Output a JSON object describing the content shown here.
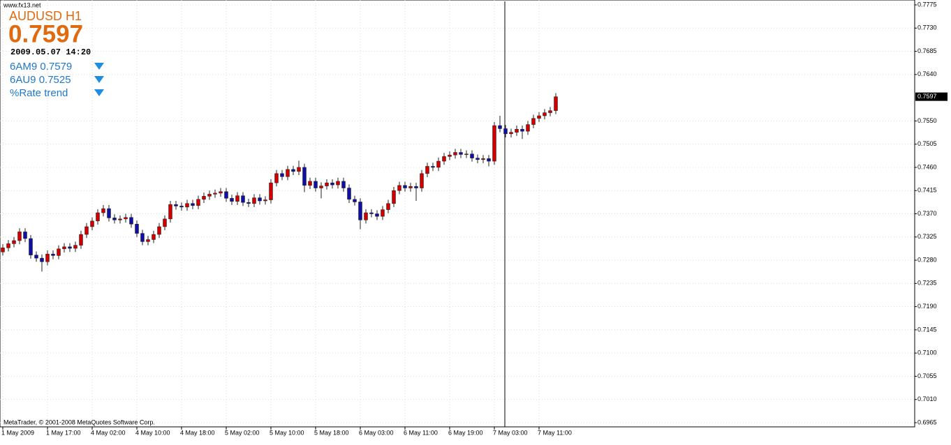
{
  "header": {
    "site": "www.fx13.net",
    "symbol": "AUDUSD  H1",
    "date": "2009.05.07 14:20",
    "items": [
      "6AM9 0.7579",
      "6AU9 0.7525",
      "%Rate trend"
    ]
  },
  "footer": "MetaTrader, © 2001-2008 MetaQuotes Software Corp.",
  "chart_data": {
    "type": "candlestick",
    "price": 0.7597,
    "up_color": "#cc0000",
    "down_color": "#1010a0",
    "grid": true,
    "ylim": [
      0.6965,
      0.7775
    ],
    "yticks": [
      0.7775,
      {
        "value": 0.773,
        "label": "0.7730"
      },
      0.7685,
      {
        "value": 0.764,
        "label": "0.7640"
      },
      {
        "value": 0.755,
        "label": "0.7550"
      },
      0.7505,
      {
        "value": 0.746,
        "label": "0.7460"
      },
      0.7415,
      {
        "value": 0.737,
        "label": "0.7370"
      },
      0.7325,
      {
        "value": 0.728,
        "label": "0.7280"
      },
      0.7235,
      {
        "value": 0.719,
        "label": "0.7190"
      },
      0.7145,
      {
        "value": 0.71,
        "label": "0.7100"
      },
      0.7055,
      {
        "value": 0.701,
        "label": "0.7010"
      },
      0.6965
    ],
    "categories": [
      "1 May 2009",
      null,
      null,
      null,
      null,
      null,
      null,
      null,
      "1 May 17:00",
      null,
      null,
      null,
      null,
      null,
      null,
      null,
      "4 May 02:00",
      null,
      null,
      null,
      null,
      null,
      null,
      null,
      "4 May 10:00",
      null,
      null,
      null,
      null,
      null,
      null,
      null,
      "4 May 18:00",
      null,
      null,
      null,
      null,
      null,
      null,
      null,
      "5 May 02:00",
      null,
      null,
      null,
      null,
      null,
      null,
      null,
      "5 May 10:00",
      null,
      null,
      null,
      null,
      null,
      null,
      null,
      "5 May 18:00",
      null,
      null,
      null,
      null,
      null,
      null,
      null,
      "6 May 03:00",
      null,
      null,
      null,
      null,
      null,
      null,
      null,
      "6 May 11:00",
      null,
      null,
      null,
      null,
      null,
      null,
      null,
      "6 May 19:00",
      null,
      null,
      null,
      null,
      null,
      null,
      null,
      "7 May 03:00",
      null,
      null,
      null,
      null,
      null,
      null,
      null,
      "7 May 11:00",
      null,
      null,
      null
    ],
    "open": [
      0.7296,
      0.7304,
      0.7312,
      0.7318,
      0.7335,
      0.7322,
      0.729,
      0.7284,
      0.7277,
      0.7292,
      0.7289,
      0.7302,
      0.7306,
      0.7303,
      0.7309,
      0.733,
      0.7345,
      0.7356,
      0.7372,
      0.738,
      0.7362,
      0.7358,
      0.736,
      0.7363,
      0.735,
      0.7332,
      0.7316,
      0.732,
      0.733,
      0.7345,
      0.736,
      0.7388,
      0.7385,
      0.7383,
      0.739,
      0.7386,
      0.7398,
      0.7404,
      0.7408,
      0.741,
      0.7413,
      0.74,
      0.7394,
      0.7405,
      0.7392,
      0.739,
      0.7401,
      0.7395,
      0.7397,
      0.743,
      0.7448,
      0.7442,
      0.7456,
      0.7452,
      0.746,
      0.7425,
      0.7433,
      0.742,
      0.7424,
      0.743,
      0.7426,
      0.7433,
      0.742,
      0.7398,
      0.7393,
      0.7358,
      0.7372,
      0.737,
      0.7365,
      0.7378,
      0.739,
      0.7415,
      0.7425,
      0.742,
      0.7423,
      0.742,
      0.7448,
      0.7462,
      0.746,
      0.7472,
      0.7481,
      0.7484,
      0.7489,
      0.7485,
      0.7486,
      0.7478,
      0.7475,
      0.7477,
      0.7472,
      0.7541,
      0.7535,
      0.7525,
      0.7528,
      0.7534,
      0.753,
      0.7543,
      0.7555,
      0.756,
      0.7566,
      0.757
    ],
    "high": [
      0.7311,
      0.7319,
      0.7325,
      0.7342,
      0.7342,
      0.7329,
      0.7297,
      0.7291,
      0.7299,
      0.7299,
      0.7309,
      0.7313,
      0.7313,
      0.7316,
      0.7337,
      0.7352,
      0.7363,
      0.7379,
      0.7387,
      0.7387,
      0.7369,
      0.7367,
      0.737,
      0.737,
      0.7357,
      0.7339,
      0.7327,
      0.7337,
      0.7352,
      0.7367,
      0.7395,
      0.7395,
      0.7392,
      0.7397,
      0.7397,
      0.7405,
      0.7411,
      0.7415,
      0.7417,
      0.742,
      0.742,
      0.7407,
      0.7412,
      0.7412,
      0.7399,
      0.7408,
      0.7408,
      0.7404,
      0.7437,
      0.7455,
      0.7455,
      0.7463,
      0.7463,
      0.7473,
      0.7467,
      0.744,
      0.744,
      0.7431,
      0.7437,
      0.7437,
      0.744,
      0.744,
      0.7427,
      0.7405,
      0.74,
      0.7379,
      0.7379,
      0.7377,
      0.7385,
      0.7397,
      0.7422,
      0.7432,
      0.7432,
      0.743,
      0.743,
      0.7455,
      0.7469,
      0.7469,
      0.7479,
      0.7488,
      0.7491,
      0.7496,
      0.7496,
      0.7493,
      0.7493,
      0.7485,
      0.7484,
      0.7484,
      0.7548,
      0.756,
      0.7542,
      0.7535,
      0.7541,
      0.7541,
      0.755,
      0.7562,
      0.7567,
      0.7573,
      0.7577,
      0.7604
    ],
    "low": [
      0.7289,
      0.7297,
      0.7305,
      0.7311,
      0.7315,
      0.7283,
      0.7277,
      0.7258,
      0.727,
      0.7282,
      0.7282,
      0.7295,
      0.7296,
      0.7296,
      0.7302,
      0.7323,
      0.7338,
      0.7349,
      0.7365,
      0.7355,
      0.7351,
      0.7351,
      0.7353,
      0.7343,
      0.7325,
      0.7309,
      0.7309,
      0.7313,
      0.7323,
      0.7338,
      0.7353,
      0.7378,
      0.7376,
      0.7376,
      0.7379,
      0.7379,
      0.7391,
      0.7397,
      0.7401,
      0.7403,
      0.7393,
      0.7387,
      0.7387,
      0.7385,
      0.7383,
      0.7383,
      0.7388,
      0.7388,
      0.739,
      0.7423,
      0.7435,
      0.7435,
      0.7445,
      0.7445,
      0.7412,
      0.7418,
      0.7413,
      0.74,
      0.7417,
      0.7419,
      0.7419,
      0.7413,
      0.7391,
      0.7386,
      0.734,
      0.7351,
      0.7363,
      0.7358,
      0.7358,
      0.7371,
      0.7383,
      0.7408,
      0.7413,
      0.7413,
      0.7395,
      0.7413,
      0.7441,
      0.7453,
      0.7453,
      0.7465,
      0.7474,
      0.7477,
      0.7478,
      0.7478,
      0.7471,
      0.7468,
      0.7468,
      0.7462,
      0.7465,
      0.7528,
      0.7518,
      0.7518,
      0.7521,
      0.7515,
      0.7523,
      0.7536,
      0.7548,
      0.7553,
      0.7559,
      0.7563
    ],
    "close": [
      0.7304,
      0.7312,
      0.7318,
      0.7335,
      0.7322,
      0.729,
      0.7284,
      0.7277,
      0.7292,
      0.7289,
      0.7302,
      0.7306,
      0.7303,
      0.7309,
      0.733,
      0.7345,
      0.7356,
      0.7372,
      0.738,
      0.7362,
      0.7358,
      0.736,
      0.7363,
      0.735,
      0.7332,
      0.7316,
      0.732,
      0.733,
      0.7345,
      0.736,
      0.7388,
      0.7385,
      0.7383,
      0.739,
      0.7386,
      0.7398,
      0.7404,
      0.7408,
      0.741,
      0.7413,
      0.74,
      0.7394,
      0.7405,
      0.7392,
      0.739,
      0.7401,
      0.7395,
      0.7397,
      0.743,
      0.7448,
      0.7442,
      0.7456,
      0.7452,
      0.746,
      0.7425,
      0.7433,
      0.742,
      0.7424,
      0.743,
      0.7426,
      0.7433,
      0.742,
      0.7398,
      0.7393,
      0.7358,
      0.7372,
      0.737,
      0.7365,
      0.7378,
      0.739,
      0.7415,
      0.7425,
      0.742,
      0.7423,
      0.742,
      0.7448,
      0.7462,
      0.746,
      0.7472,
      0.7481,
      0.7484,
      0.7489,
      0.7485,
      0.7486,
      0.7478,
      0.7475,
      0.7477,
      0.7472,
      0.7541,
      0.7535,
      0.7525,
      0.7528,
      0.7534,
      0.753,
      0.7543,
      0.7555,
      0.756,
      0.7566,
      0.757,
      0.7597
    ]
  }
}
